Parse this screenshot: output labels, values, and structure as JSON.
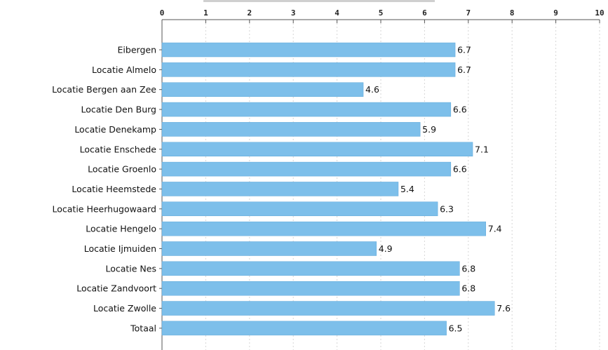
{
  "chart_data": {
    "type": "bar",
    "orientation": "horizontal",
    "title": "",
    "xlabel": "",
    "ylabel": "",
    "xlim": [
      0,
      10
    ],
    "ticks": [
      0,
      1,
      2,
      3,
      4,
      5,
      6,
      7,
      8,
      9,
      10
    ],
    "grid": true,
    "categories": [
      "Eibergen",
      "Locatie Almelo",
      "Locatie Bergen aan Zee",
      "Locatie Den Burg",
      "Locatie Denekamp",
      "Locatie Enschede",
      "Locatie Groenlo",
      "Locatie Heemstede",
      "Locatie Heerhugowaard",
      "Locatie Hengelo",
      "Locatie Ijmuiden",
      "Locatie Nes",
      "Locatie Zandvoort",
      "Locatie Zwolle",
      "Totaal"
    ],
    "values": [
      6.7,
      6.7,
      4.6,
      6.6,
      5.9,
      7.1,
      6.6,
      5.4,
      6.3,
      7.4,
      4.9,
      6.8,
      6.8,
      7.6,
      6.5
    ],
    "value_labels": [
      "6.7",
      "6.7",
      "4.6",
      "6.6",
      "5.9",
      "7.1",
      "6.6",
      "5.4",
      "6.3",
      "7.4",
      "4.9",
      "6.8",
      "6.8",
      "7.6",
      "6.5"
    ],
    "bar_color": "#7dbfea"
  }
}
